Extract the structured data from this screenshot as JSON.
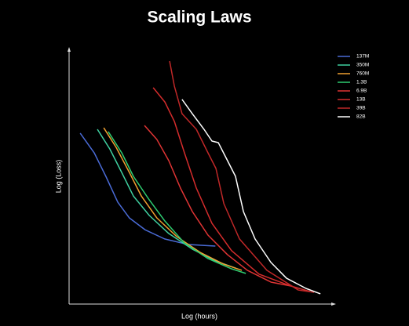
{
  "chart_data": {
    "type": "line",
    "title": "Scaling Laws",
    "x_label": "Log (hours)",
    "y_label": "Log (Loss)",
    "xlim": [
      0,
      100
    ],
    "ylim": [
      0,
      100
    ],
    "legend": "upper right",
    "series": [
      {
        "name": "137M",
        "color": "#4a6bd6",
        "x": [
          4.2,
          9.5,
          13.9,
          18.4,
          22.8,
          28.7,
          36.1,
          45.0,
          55.3
        ],
        "values": [
          66.9,
          59.2,
          50.0,
          39.9,
          33.7,
          29.1,
          25.5,
          23.3,
          22.7
        ]
      },
      {
        "name": "350M",
        "color": "#3fd0a0",
        "x": [
          10.7,
          15.4,
          19.9,
          24.3,
          30.3,
          37.7,
          46.6,
          55.3,
          62.9
        ],
        "values": [
          68.4,
          60.7,
          51.5,
          42.3,
          34.7,
          27.6,
          21.5,
          16.9,
          14.1
        ]
      },
      {
        "name": "760M",
        "color": "#f0a030",
        "x": [
          13.1,
          17.8,
          22.8,
          27.3,
          33.2,
          40.7,
          49.6,
          58.5,
          65.3
        ],
        "values": [
          69.0,
          61.3,
          51.5,
          42.3,
          33.7,
          26.4,
          20.2,
          15.6,
          13.2
        ]
      },
      {
        "name": "1.3B",
        "color": "#2ecc71",
        "x": [
          14.8,
          19.9,
          24.3,
          30.3,
          36.2,
          43.6,
          52.5,
          61.4,
          66.8
        ],
        "values": [
          67.5,
          59.2,
          50.0,
          40.8,
          32.5,
          23.9,
          17.8,
          13.8,
          12.0
        ]
      },
      {
        "name": "6.9B",
        "color": "#e03434",
        "x": [
          28.5,
          33.2,
          37.7,
          42.1,
          46.6,
          52.5,
          59.9,
          67.4,
          76.3,
          83.7
        ],
        "values": [
          69.9,
          64.4,
          56.1,
          45.4,
          36.2,
          27.0,
          19.3,
          13.2,
          8.6,
          7.1
        ]
      },
      {
        "name": "13B",
        "color": "#d42c2c",
        "x": [
          31.8,
          36.2,
          39.8,
          43.6,
          48.1,
          54.0,
          61.4,
          71.8,
          83.7,
          91.1
        ],
        "values": [
          84.7,
          79.1,
          71.5,
          59.2,
          45.4,
          31.6,
          20.9,
          11.7,
          7.1,
          4.9
        ]
      },
      {
        "name": "39B",
        "color": "#c02828",
        "x": [
          38.0,
          39.8,
          42.7,
          48.1,
          52.5,
          55.5,
          58.5,
          64.4,
          74.8,
          86.6,
          92.6
        ],
        "values": [
          95.1,
          85.3,
          74.5,
          68.4,
          59.2,
          53.1,
          39.3,
          25.5,
          13.2,
          5.5,
          4.6
        ]
      },
      {
        "name": "82B",
        "color": "#ffffff",
        "x": [
          42.7,
          46.6,
          51.0,
          54.0,
          56.4,
          59.9,
          62.9,
          65.9,
          70.3,
          76.3,
          82.2,
          89.6,
          95.0
        ],
        "values": [
          80.1,
          74.5,
          68.4,
          63.8,
          63.2,
          56.1,
          50.0,
          36.2,
          25.5,
          16.3,
          10.1,
          6.1,
          4.0
        ]
      }
    ]
  }
}
